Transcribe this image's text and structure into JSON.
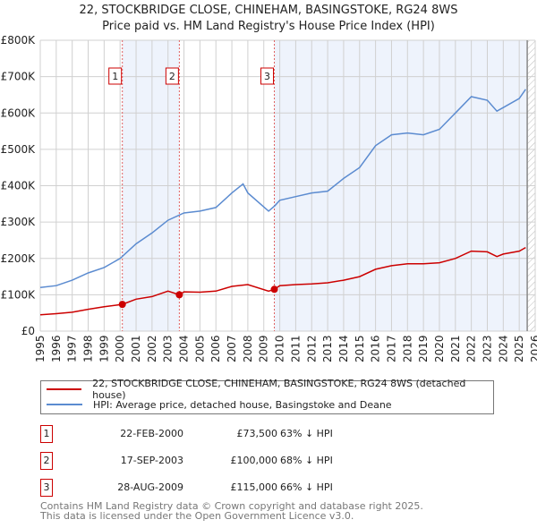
{
  "title": "22, STOCKBRIDGE CLOSE, CHINEHAM, BASINGSTOKE, RG24 8WS",
  "subtitle": "Price paid vs. HM Land Registry's House Price Index (HPI)",
  "chart_data": {
    "type": "line",
    "ylim": [
      0,
      800000
    ],
    "xlim": [
      1995,
      2026
    ],
    "yticks": [
      {
        "v": 0,
        "label": "£0"
      },
      {
        "v": 100000,
        "label": "£100K"
      },
      {
        "v": 200000,
        "label": "£200K"
      },
      {
        "v": 300000,
        "label": "£300K"
      },
      {
        "v": 400000,
        "label": "£400K"
      },
      {
        "v": 500000,
        "label": "£500K"
      },
      {
        "v": 600000,
        "label": "£600K"
      },
      {
        "v": 700000,
        "label": "£700K"
      },
      {
        "v": 800000,
        "label": "£800K"
      }
    ],
    "xticks": [
      "1995",
      "1996",
      "1997",
      "1998",
      "1999",
      "2000",
      "2001",
      "2002",
      "2003",
      "2004",
      "2005",
      "2006",
      "2007",
      "2008",
      "2009",
      "2010",
      "2011",
      "2012",
      "2013",
      "2014",
      "2015",
      "2016",
      "2017",
      "2018",
      "2019",
      "2020",
      "2021",
      "2022",
      "2023",
      "2024",
      "2025",
      "2026"
    ],
    "series": [
      {
        "name": "22, STOCKBRIDGE CLOSE, CHINEHAM, BASINGSTOKE, RG24 8WS (detached house)",
        "color": "#cc0000",
        "x": [
          1995,
          1996,
          1997,
          1998,
          1999,
          2000.14,
          2001,
          2002,
          2003,
          2003.71,
          2004,
          2005,
          2006,
          2007,
          2008,
          2009.3,
          2009.66,
          2010,
          2011,
          2012,
          2013,
          2014,
          2015,
          2016,
          2017,
          2018,
          2019,
          2020,
          2021,
          2022,
          2023,
          2023.6,
          2024,
          2025,
          2025.4
        ],
        "y": [
          45000,
          48000,
          52000,
          60000,
          67000,
          73500,
          88000,
          95000,
          110000,
          100000,
          108000,
          107000,
          110000,
          123000,
          128000,
          110000,
          115000,
          125000,
          128000,
          130000,
          133000,
          140000,
          150000,
          170000,
          180000,
          185000,
          185000,
          188000,
          200000,
          220000,
          218000,
          205000,
          212000,
          220000,
          230000
        ]
      },
      {
        "name": "HPI: Average price, detached house, Basingstoke and Deane",
        "color": "#5b8bd0",
        "x": [
          1995,
          1996,
          1997,
          1998,
          1999,
          2000,
          2001,
          2002,
          2003,
          2004,
          2005,
          2006,
          2007,
          2007.7,
          2008,
          2009.3,
          2009.7,
          2010,
          2011,
          2012,
          2013,
          2014,
          2015,
          2016,
          2017,
          2018,
          2019,
          2020,
          2021,
          2022,
          2023,
          2023.6,
          2024,
          2025,
          2025.4
        ],
        "y": [
          120000,
          125000,
          140000,
          160000,
          175000,
          200000,
          240000,
          270000,
          305000,
          325000,
          330000,
          340000,
          380000,
          405000,
          380000,
          330000,
          345000,
          360000,
          370000,
          380000,
          385000,
          420000,
          450000,
          510000,
          540000,
          545000,
          540000,
          555000,
          600000,
          645000,
          635000,
          605000,
          615000,
          640000,
          665000
        ]
      }
    ],
    "sales": [
      {
        "num": "1",
        "x": 2000.14,
        "price": 73500,
        "date": "22-FEB-2000",
        "price_label": "£73,500",
        "hpi": "63% ↓ HPI"
      },
      {
        "num": "2",
        "x": 2003.71,
        "price": 100000,
        "date": "17-SEP-2003",
        "price_label": "£100,000",
        "hpi": "68% ↓ HPI"
      },
      {
        "num": "3",
        "x": 2009.66,
        "price": 115000,
        "date": "28-AUG-2009",
        "price_label": "£115,000",
        "hpi": "66% ↓ HPI"
      }
    ],
    "hatch_from": 2025.5
  },
  "footer": [
    "Contains HM Land Registry data © Crown copyright and database right 2025.",
    "This data is licensed under the Open Government Licence v3.0."
  ]
}
